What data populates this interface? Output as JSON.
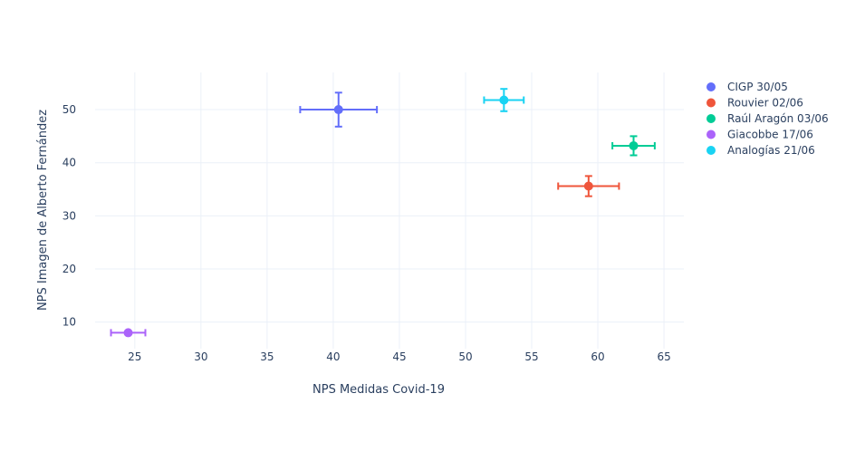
{
  "chart_data": {
    "type": "scatter",
    "xlabel": "NPS Medidas Covid-19",
    "ylabel": "NPS Imagen de Alberto Fernández",
    "xlim": [
      22,
      66.5
    ],
    "ylim": [
      5,
      57
    ],
    "xticks": [
      25,
      30,
      35,
      40,
      45,
      50,
      55,
      60,
      65
    ],
    "yticks": [
      10,
      20,
      30,
      40,
      50
    ],
    "grid": true,
    "legend_position": "top-right",
    "series": [
      {
        "name": "CIGP 30/05",
        "color": "#636efa",
        "x": 40.4,
        "y": 50.0,
        "x_err": 2.9,
        "y_err": 3.2
      },
      {
        "name": "Rouvier 02/06",
        "color": "#ef553b",
        "x": 59.3,
        "y": 35.6,
        "x_err": 2.3,
        "y_err": 1.9
      },
      {
        "name": "Raúl Aragón 03/06",
        "color": "#00cc96",
        "x": 62.7,
        "y": 43.2,
        "x_err": 1.6,
        "y_err": 1.8
      },
      {
        "name": "Giacobbe 17/06",
        "color": "#ab63fa",
        "x": 24.5,
        "y": 8.0,
        "x_err": 1.3,
        "y_err": 0.0
      },
      {
        "name": "Analogías 21/06",
        "color": "#19d3f3",
        "x": 52.9,
        "y": 51.8,
        "x_err": 1.5,
        "y_err": 2.1
      }
    ]
  }
}
